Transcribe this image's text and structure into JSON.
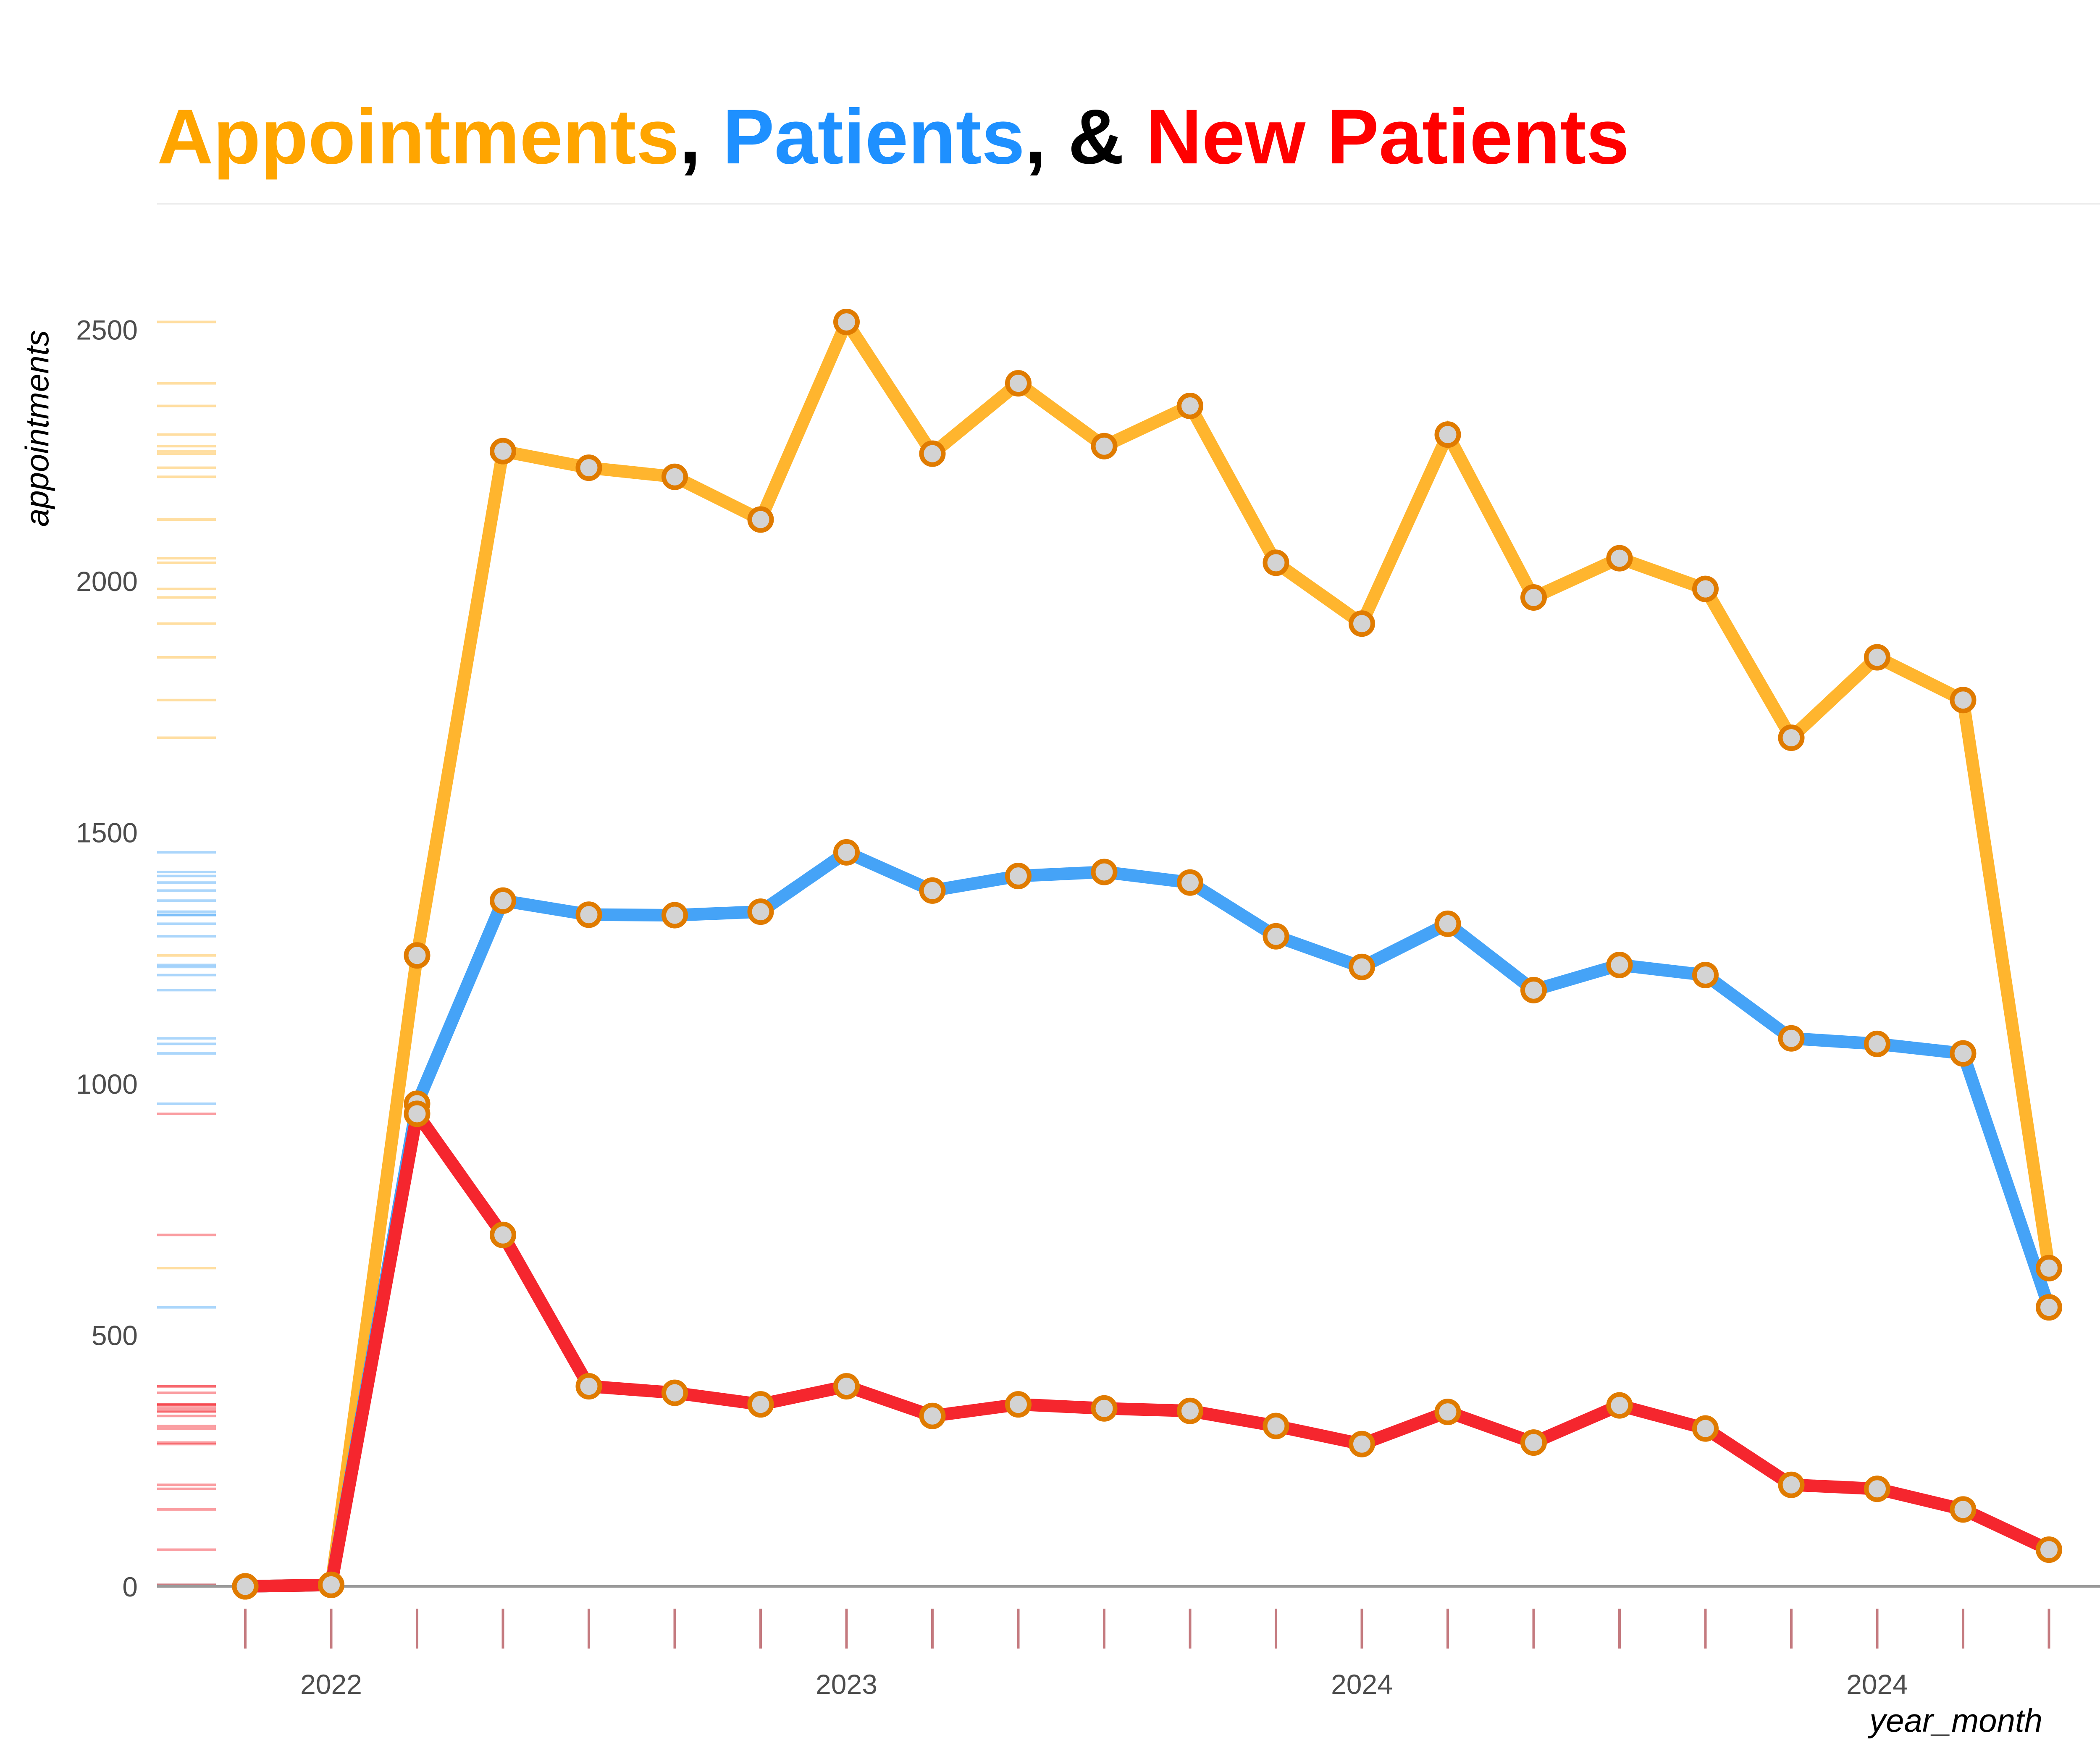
{
  "chart_data": {
    "type": "line",
    "title_parts": [
      {
        "text": "Appointments",
        "color": "#FFA500"
      },
      {
        "text": ", ",
        "color": "#000000"
      },
      {
        "text": "Patients",
        "color": "#1E90FF"
      },
      {
        "text": ", & ",
        "color": "#000000"
      },
      {
        "text": "New Patients",
        "color": "#FF0000"
      }
    ],
    "xlabel": "year_month",
    "ylabel": "appointments",
    "ylim": [
      0,
      2600
    ],
    "y_ticks": [
      0,
      500,
      1000,
      1500,
      2000,
      2500
    ],
    "x_index": [
      1,
      2,
      3,
      4,
      5,
      6,
      7,
      8,
      9,
      10,
      11,
      12,
      13,
      14,
      15,
      16,
      17,
      18,
      19,
      20,
      21,
      22,
      23,
      24,
      25
    ],
    "x_tick_labels": [
      {
        "x_index": 2,
        "label": "2022"
      },
      {
        "x_index": 8,
        "label": "2023"
      },
      {
        "x_index": 14,
        "label": "2024"
      },
      {
        "x_index": 20,
        "label": "2024"
      }
    ],
    "grid": false,
    "rug": true,
    "point_style": {
      "fill": "#D3D3D3",
      "stroke": "#E07B00"
    },
    "series": [
      {
        "key": "appointments",
        "color": "#FFB52E",
        "values": [
          0,
          3,
          1255,
          2258,
          2225,
          2207,
          2122,
          2515,
          2253,
          2393,
          2268,
          2348,
          2036,
          1915,
          2291,
          1967,
          2045,
          1984,
          1688,
          1848,
          1763,
          633
        ]
      },
      {
        "key": "patients",
        "color": "#45A3F7",
        "values": [
          0,
          3,
          960,
          1364,
          1336,
          1335,
          1342,
          1460,
          1384,
          1413,
          1421,
          1400,
          1293,
          1232,
          1318,
          1186,
          1236,
          1216,
          1090,
          1079,
          1060,
          555
        ]
      },
      {
        "key": "new_patients",
        "color": "#F5262E",
        "values": [
          0,
          3,
          940,
          699,
          398,
          385,
          362,
          398,
          339,
          362,
          354,
          349,
          319,
          283,
          347,
          286,
          360,
          314,
          202,
          194,
          153,
          73
        ]
      }
    ]
  }
}
